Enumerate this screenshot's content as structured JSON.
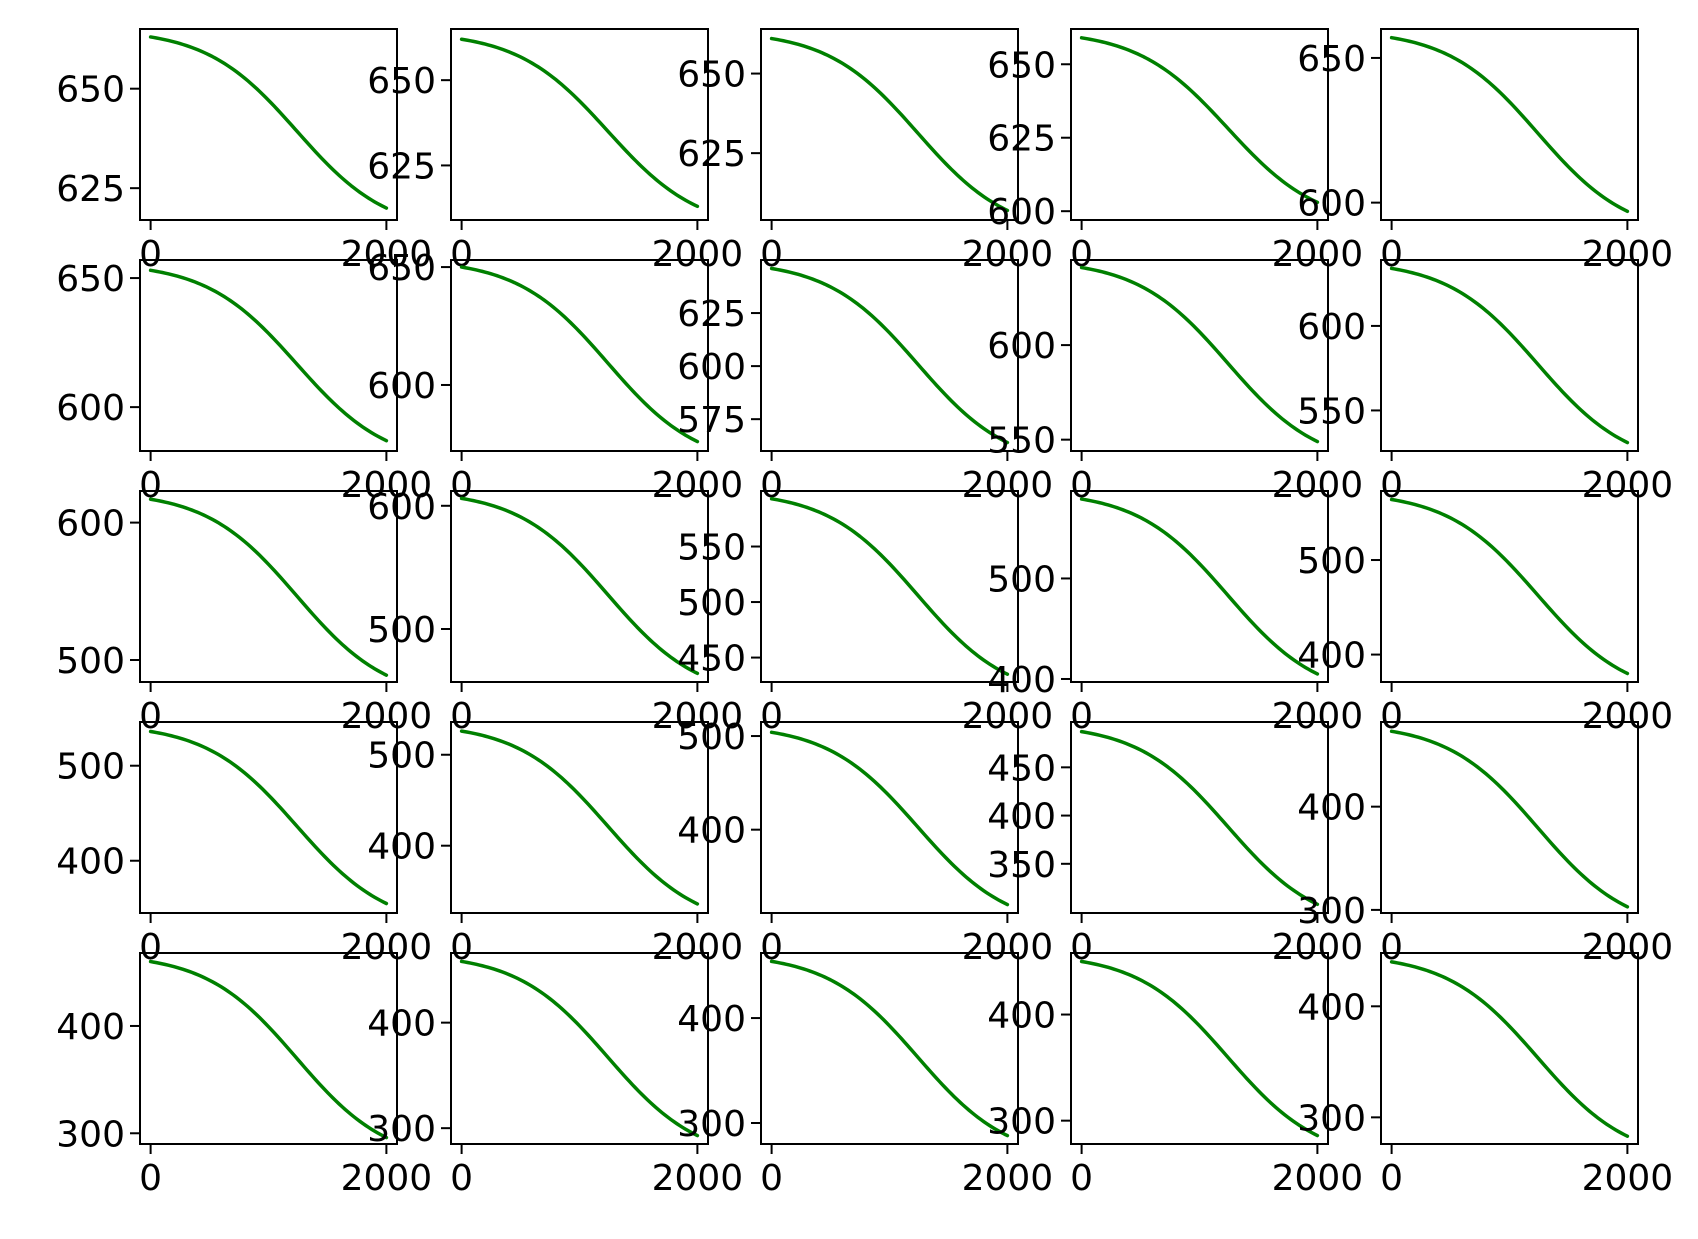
{
  "chart_data": {
    "type": "line",
    "layout": {
      "rows": 5,
      "cols": 5
    },
    "line_color": "#008000",
    "x": {
      "min": 0,
      "max": 2000,
      "ticks": [
        0,
        2000
      ]
    },
    "panels": [
      {
        "y0": 663,
        "y1": 620,
        "ylim": [
          617,
          665
        ],
        "yticks": [
          625,
          650
        ]
      },
      {
        "y0": 662,
        "y1": 613,
        "ylim": [
          609,
          665
        ],
        "yticks": [
          625,
          650
        ]
      },
      {
        "y0": 661,
        "y1": 607,
        "ylim": [
          604,
          664
        ],
        "yticks": [
          625,
          650
        ]
      },
      {
        "y0": 659,
        "y1": 603,
        "ylim": [
          597,
          662
        ],
        "yticks": [
          600,
          625,
          650
        ]
      },
      {
        "y0": 657,
        "y1": 597,
        "ylim": [
          594,
          660
        ],
        "yticks": [
          600,
          650
        ]
      },
      {
        "y0": 653,
        "y1": 587,
        "ylim": [
          583,
          657
        ],
        "yticks": [
          600,
          650
        ]
      },
      {
        "y0": 650,
        "y1": 576,
        "ylim": [
          572,
          653
        ],
        "yticks": [
          600,
          650
        ]
      },
      {
        "y0": 646,
        "y1": 564,
        "ylim": [
          560,
          650
        ],
        "yticks": [
          575,
          600,
          625
        ]
      },
      {
        "y0": 641,
        "y1": 549,
        "ylim": [
          544,
          645
        ],
        "yticks": [
          550,
          600
        ]
      },
      {
        "y0": 634,
        "y1": 531,
        "ylim": [
          526,
          639
        ],
        "yticks": [
          550,
          600
        ]
      },
      {
        "y0": 617,
        "y1": 489,
        "ylim": [
          484,
          623
        ],
        "yticks": [
          500,
          600
        ]
      },
      {
        "y0": 606,
        "y1": 464,
        "ylim": [
          457,
          612
        ],
        "yticks": [
          500,
          600
        ]
      },
      {
        "y0": 593,
        "y1": 435,
        "ylim": [
          428,
          600
        ],
        "yticks": [
          450,
          500,
          550
        ]
      },
      {
        "y0": 579,
        "y1": 405,
        "ylim": [
          397,
          587
        ],
        "yticks": [
          400,
          500
        ]
      },
      {
        "y0": 564,
        "y1": 380,
        "ylim": [
          371,
          573
        ],
        "yticks": [
          400,
          500
        ]
      },
      {
        "y0": 536,
        "y1": 355,
        "ylim": [
          345,
          546
        ],
        "yticks": [
          400,
          500
        ]
      },
      {
        "y0": 526,
        "y1": 336,
        "ylim": [
          326,
          536
        ],
        "yticks": [
          400,
          500
        ]
      },
      {
        "y0": 504,
        "y1": 320,
        "ylim": [
          311,
          515
        ],
        "yticks": [
          400,
          500
        ]
      },
      {
        "y0": 487,
        "y1": 308,
        "ylim": [
          299,
          497
        ],
        "yticks": [
          350,
          400,
          450
        ]
      },
      {
        "y0": 473,
        "y1": 303,
        "ylim": [
          297,
          482
        ],
        "yticks": [
          300,
          400
        ]
      },
      {
        "y0": 460,
        "y1": 296,
        "ylim": [
          290,
          468
        ],
        "yticks": [
          300,
          400
        ]
      },
      {
        "y0": 458,
        "y1": 293,
        "ylim": [
          285,
          466
        ],
        "yticks": [
          300,
          400
        ]
      },
      {
        "y0": 454,
        "y1": 288,
        "ylim": [
          280,
          462
        ],
        "yticks": [
          300,
          400
        ]
      },
      {
        "y0": 450,
        "y1": 286,
        "ylim": [
          278,
          458
        ],
        "yticks": [
          300,
          400
        ]
      },
      {
        "y0": 440,
        "y1": 283,
        "ylim": [
          276,
          448
        ],
        "yticks": [
          300,
          400
        ]
      }
    ]
  }
}
